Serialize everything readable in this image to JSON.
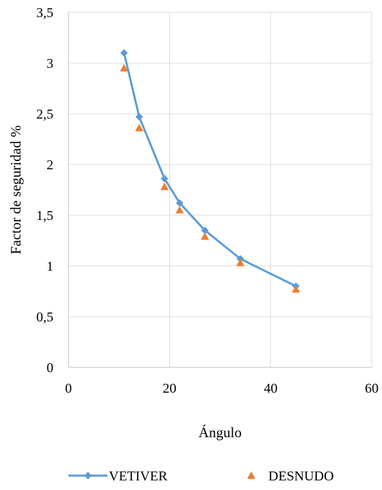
{
  "chart_data": {
    "type": "scatter",
    "xlabel": "Ángulo",
    "ylabel": "Factor de seguridad %",
    "xlim": [
      0,
      60
    ],
    "ylim": [
      0,
      3.5
    ],
    "x_ticks": [
      0,
      20,
      40,
      60
    ],
    "x_tick_labels": [
      "0",
      "20",
      "40",
      "60"
    ],
    "y_ticks": [
      0,
      0.5,
      1,
      1.5,
      2,
      2.5,
      3,
      3.5
    ],
    "y_tick_labels": [
      "0",
      "0,5",
      "1",
      "1,5",
      "2",
      "2,5",
      "3",
      "3,5"
    ],
    "grid": true,
    "legend_position": "bottom",
    "series": [
      {
        "name": "VETIVER",
        "style": "line-diamond",
        "color": "#5B9BD5",
        "points": [
          {
            "x": 11,
            "y": 3.1
          },
          {
            "x": 14,
            "y": 2.47
          },
          {
            "x": 19,
            "y": 1.86
          },
          {
            "x": 22,
            "y": 1.62
          },
          {
            "x": 27,
            "y": 1.35
          },
          {
            "x": 34,
            "y": 1.07
          },
          {
            "x": 45,
            "y": 0.8
          }
        ]
      },
      {
        "name": "DESNUDO",
        "style": "triangle",
        "color": "#ED7D31",
        "points": [
          {
            "x": 11,
            "y": 2.95
          },
          {
            "x": 14,
            "y": 2.36
          },
          {
            "x": 19,
            "y": 1.78
          },
          {
            "x": 22,
            "y": 1.55
          },
          {
            "x": 27,
            "y": 1.29
          },
          {
            "x": 34,
            "y": 1.03
          },
          {
            "x": 45,
            "y": 0.77
          }
        ]
      }
    ]
  }
}
